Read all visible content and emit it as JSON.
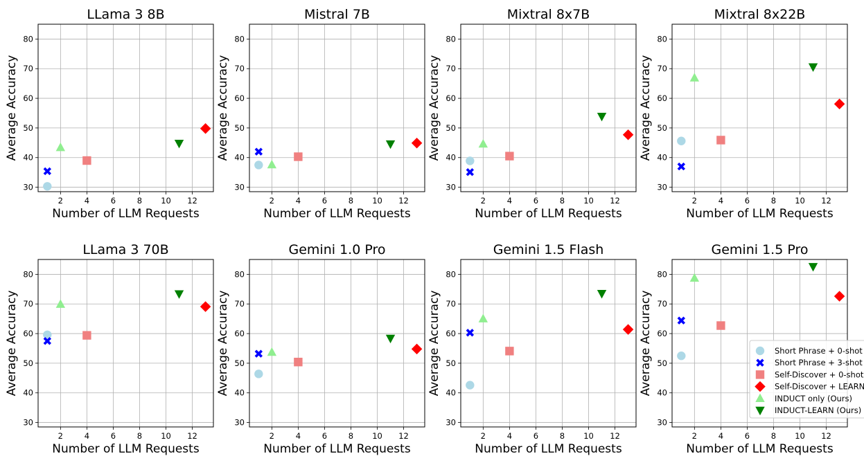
{
  "chart_data": [
    {
      "type": "scatter",
      "title": "LLama 3 8B",
      "xlabel": "Number of LLM Requests",
      "ylabel": "Average Accuracy",
      "xlim": [
        0.3,
        13.6
      ],
      "ylim": [
        28.5,
        85
      ],
      "xticks": [
        "2",
        "4",
        "6",
        "8",
        "10",
        "12"
      ],
      "yticks": [
        "30",
        "40",
        "50",
        "60",
        "70",
        "80"
      ],
      "points": [
        {
          "series": 0,
          "x": 1,
          "y": 30.3
        },
        {
          "series": 1,
          "x": 1,
          "y": 35.4
        },
        {
          "series": 2,
          "x": 4,
          "y": 39.0
        },
        {
          "series": 3,
          "x": 13,
          "y": 49.8
        },
        {
          "series": 4,
          "x": 2,
          "y": 43.4
        },
        {
          "series": 5,
          "x": 11,
          "y": 44.8
        }
      ]
    },
    {
      "type": "scatter",
      "title": "Mistral 7B",
      "xlabel": "Number of LLM Requests",
      "ylabel": "Average Accuracy",
      "xlim": [
        0.3,
        13.6
      ],
      "ylim": [
        28.5,
        85
      ],
      "xticks": [
        "2",
        "4",
        "6",
        "8",
        "10",
        "12"
      ],
      "yticks": [
        "30",
        "40",
        "50",
        "60",
        "70",
        "80"
      ],
      "points": [
        {
          "series": 0,
          "x": 1,
          "y": 37.5
        },
        {
          "series": 1,
          "x": 1,
          "y": 42.0
        },
        {
          "series": 2,
          "x": 4,
          "y": 40.3
        },
        {
          "series": 3,
          "x": 13,
          "y": 44.9
        },
        {
          "series": 4,
          "x": 2,
          "y": 37.6
        },
        {
          "series": 5,
          "x": 11,
          "y": 44.6
        }
      ]
    },
    {
      "type": "scatter",
      "title": "Mixtral 8x7B",
      "xlabel": "Number of LLM Requests",
      "ylabel": "Average Accuracy",
      "xlim": [
        0.3,
        13.6
      ],
      "ylim": [
        28.5,
        85
      ],
      "xticks": [
        "2",
        "4",
        "6",
        "8",
        "10",
        "12"
      ],
      "yticks": [
        "30",
        "40",
        "50",
        "60",
        "70",
        "80"
      ],
      "points": [
        {
          "series": 0,
          "x": 1,
          "y": 38.9
        },
        {
          "series": 1,
          "x": 1,
          "y": 35.1
        },
        {
          "series": 2,
          "x": 4,
          "y": 40.5
        },
        {
          "series": 3,
          "x": 13,
          "y": 47.7
        },
        {
          "series": 4,
          "x": 2,
          "y": 44.6
        },
        {
          "series": 5,
          "x": 11,
          "y": 53.9
        }
      ]
    },
    {
      "type": "scatter",
      "title": "Mixtral 8x22B",
      "xlabel": "Number of LLM Requests",
      "ylabel": "Average Accuracy",
      "xlim": [
        0.3,
        13.6
      ],
      "ylim": [
        28.5,
        85
      ],
      "xticks": [
        "2",
        "4",
        "6",
        "8",
        "10",
        "12"
      ],
      "yticks": [
        "30",
        "40",
        "50",
        "60",
        "70",
        "80"
      ],
      "points": [
        {
          "series": 0,
          "x": 1,
          "y": 45.6
        },
        {
          "series": 1,
          "x": 1,
          "y": 37.0
        },
        {
          "series": 2,
          "x": 4,
          "y": 45.9
        },
        {
          "series": 3,
          "x": 13,
          "y": 58.1
        },
        {
          "series": 4,
          "x": 2,
          "y": 66.9
        },
        {
          "series": 5,
          "x": 11,
          "y": 70.6
        }
      ]
    },
    {
      "type": "scatter",
      "title": "LLama 3 70B",
      "xlabel": "Number of LLM Requests",
      "ylabel": "Average Accuracy",
      "xlim": [
        0.3,
        13.6
      ],
      "ylim": [
        28.5,
        85
      ],
      "xticks": [
        "2",
        "4",
        "6",
        "8",
        "10",
        "12"
      ],
      "yticks": [
        "30",
        "40",
        "50",
        "60",
        "70",
        "80"
      ],
      "points": [
        {
          "series": 0,
          "x": 1,
          "y": 59.6
        },
        {
          "series": 1,
          "x": 1,
          "y": 57.5
        },
        {
          "series": 2,
          "x": 4,
          "y": 59.4
        },
        {
          "series": 3,
          "x": 13,
          "y": 69.1
        },
        {
          "series": 4,
          "x": 2,
          "y": 69.9
        },
        {
          "series": 5,
          "x": 11,
          "y": 73.4
        }
      ]
    },
    {
      "type": "scatter",
      "title": "Gemini 1.0 Pro",
      "xlabel": "Number of LLM Requests",
      "ylabel": "Average Accuracy",
      "xlim": [
        0.3,
        13.6
      ],
      "ylim": [
        28.5,
        85
      ],
      "xticks": [
        "2",
        "4",
        "6",
        "8",
        "10",
        "12"
      ],
      "yticks": [
        "30",
        "40",
        "50",
        "60",
        "70",
        "80"
      ],
      "points": [
        {
          "series": 0,
          "x": 1,
          "y": 46.4
        },
        {
          "series": 1,
          "x": 1,
          "y": 53.2
        },
        {
          "series": 2,
          "x": 4,
          "y": 50.4
        },
        {
          "series": 3,
          "x": 13,
          "y": 54.8
        },
        {
          "series": 4,
          "x": 2,
          "y": 53.7
        },
        {
          "series": 5,
          "x": 11,
          "y": 58.4
        }
      ]
    },
    {
      "type": "scatter",
      "title": "Gemini 1.5 Flash",
      "xlabel": "Number of LLM Requests",
      "ylabel": "Average Accuracy",
      "xlim": [
        0.3,
        13.6
      ],
      "ylim": [
        28.5,
        85
      ],
      "xticks": [
        "2",
        "4",
        "6",
        "8",
        "10",
        "12"
      ],
      "yticks": [
        "30",
        "40",
        "50",
        "60",
        "70",
        "80"
      ],
      "points": [
        {
          "series": 0,
          "x": 1,
          "y": 42.6
        },
        {
          "series": 1,
          "x": 1,
          "y": 60.3
        },
        {
          "series": 2,
          "x": 4,
          "y": 54.1
        },
        {
          "series": 3,
          "x": 13,
          "y": 61.4
        },
        {
          "series": 4,
          "x": 2,
          "y": 65.0
        },
        {
          "series": 5,
          "x": 11,
          "y": 73.5
        }
      ]
    },
    {
      "type": "scatter",
      "title": "Gemini 1.5 Pro",
      "xlabel": "Number of LLM Requests",
      "ylabel": "Average Accuracy",
      "xlim": [
        0.3,
        13.6
      ],
      "ylim": [
        28.5,
        85
      ],
      "xticks": [
        "2",
        "4",
        "6",
        "8",
        "10",
        "12"
      ],
      "yticks": [
        "30",
        "40",
        "50",
        "60",
        "70",
        "80"
      ],
      "points": [
        {
          "series": 0,
          "x": 1,
          "y": 52.5
        },
        {
          "series": 1,
          "x": 1,
          "y": 64.4
        },
        {
          "series": 2,
          "x": 4,
          "y": 62.7
        },
        {
          "series": 3,
          "x": 13,
          "y": 72.6
        },
        {
          "series": 4,
          "x": 2,
          "y": 78.7
        },
        {
          "series": 5,
          "x": 11,
          "y": 82.6
        }
      ]
    }
  ],
  "series": [
    {
      "name": "Short Phrase + 0-shot",
      "color": "#add8e6",
      "marker": "circle-icon"
    },
    {
      "name": "Short Phrase + 3-shot",
      "color": "#0000ff",
      "marker": "x-mark-icon"
    },
    {
      "name": "Self-Discover + 0-shot",
      "color": "#f08080",
      "marker": "square-icon"
    },
    {
      "name": "Self-Discover + LEARN",
      "color": "#ff0000",
      "marker": "diamond-icon"
    },
    {
      "name": "INDUCT only (Ours)",
      "color": "#90ee90",
      "marker": "triangle-up-icon"
    },
    {
      "name": "INDUCT-LEARN (Ours)",
      "color": "#008000",
      "marker": "triangle-down-icon"
    }
  ],
  "legend": {
    "location": "lower-right of last panel",
    "labels": [
      "Short Phrase + 0-shot",
      "Short Phrase + 3-shot",
      "Self-Discover + 0-shot",
      "Self-Discover + LEARN",
      "INDUCT only (Ours)",
      "INDUCT-LEARN (Ours)"
    ]
  }
}
